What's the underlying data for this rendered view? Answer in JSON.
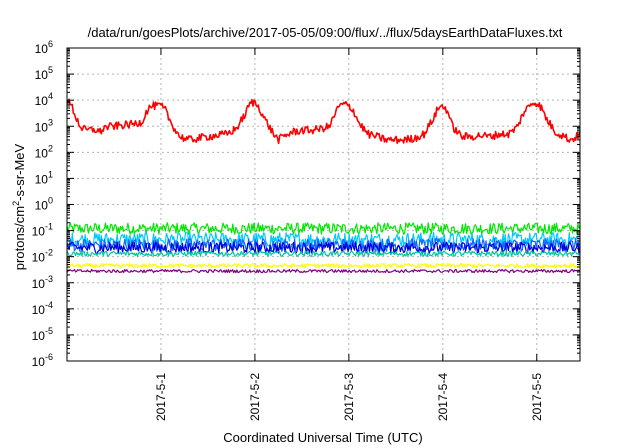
{
  "chart_data": {
    "type": "line",
    "title": "/data/run/goesPlots/archive/2017-05-05/09:00/flux/../flux/5daysEarthDataFluxes.txt",
    "xlabel": "Coordinated Universal Time (UTC)",
    "ylabel_base": "protons/cm",
    "ylabel_sup": "2",
    "ylabel_rest": "-s-sr-MeV",
    "yscale": "log",
    "ylim_exp": [
      -6,
      6
    ],
    "xlim": [
      0,
      5.46
    ],
    "x_units": "days from 2017-04-30 00:00 UTC",
    "grid": true,
    "y_ticks": [
      {
        "base": "10",
        "exp": "-6"
      },
      {
        "base": "10",
        "exp": "-5"
      },
      {
        "base": "10",
        "exp": "-4"
      },
      {
        "base": "10",
        "exp": "-3"
      },
      {
        "base": "10",
        "exp": "-2"
      },
      {
        "base": "10",
        "exp": "-1"
      },
      {
        "base": "10",
        "exp": "0"
      },
      {
        "base": "10",
        "exp": "1"
      },
      {
        "base": "10",
        "exp": "2"
      },
      {
        "base": "10",
        "exp": "3"
      },
      {
        "base": "10",
        "exp": "4"
      },
      {
        "base": "10",
        "exp": "5"
      },
      {
        "base": "10",
        "exp": "6"
      }
    ],
    "x_ticks": [
      {
        "x": 1,
        "label": "2017-5-1"
      },
      {
        "x": 2,
        "label": "2017-5-2"
      },
      {
        "x": 3,
        "label": "2017-5-3"
      },
      {
        "x": 4,
        "label": "2017-5-4"
      },
      {
        "x": 5,
        "label": "2017-5-5"
      }
    ],
    "series": [
      {
        "color": "#ff0000",
        "noise": 0.15,
        "points": [
          [
            0.0,
            10000
          ],
          [
            0.05,
            6000
          ],
          [
            0.1,
            2000
          ],
          [
            0.15,
            900
          ],
          [
            0.2,
            700
          ],
          [
            0.3,
            750
          ],
          [
            0.35,
            600
          ],
          [
            0.4,
            900
          ],
          [
            0.5,
            1000
          ],
          [
            0.6,
            1100
          ],
          [
            0.7,
            1200
          ],
          [
            0.75,
            1300
          ],
          [
            0.8,
            1500
          ],
          [
            0.85,
            4000
          ],
          [
            0.9,
            6000
          ],
          [
            1.0,
            6000
          ],
          [
            1.05,
            4000
          ],
          [
            1.1,
            1500
          ],
          [
            1.2,
            400
          ],
          [
            1.3,
            300
          ],
          [
            1.4,
            350
          ],
          [
            1.5,
            400
          ],
          [
            1.6,
            450
          ],
          [
            1.7,
            500
          ],
          [
            1.8,
            800
          ],
          [
            1.9,
            3000
          ],
          [
            1.95,
            8000
          ],
          [
            2.0,
            8000
          ],
          [
            2.05,
            5000
          ],
          [
            2.1,
            2000
          ],
          [
            2.2,
            500
          ],
          [
            2.25,
            300
          ],
          [
            2.3,
            400
          ],
          [
            2.4,
            600
          ],
          [
            2.5,
            700
          ],
          [
            2.6,
            700
          ],
          [
            2.7,
            800
          ],
          [
            2.8,
            1000
          ],
          [
            2.85,
            3000
          ],
          [
            2.9,
            6000
          ],
          [
            2.95,
            7000
          ],
          [
            3.0,
            6000
          ],
          [
            3.05,
            4000
          ],
          [
            3.1,
            1500
          ],
          [
            3.2,
            500
          ],
          [
            3.3,
            400
          ],
          [
            3.4,
            300
          ],
          [
            3.5,
            300
          ],
          [
            3.6,
            300
          ],
          [
            3.7,
            350
          ],
          [
            3.8,
            500
          ],
          [
            3.9,
            2000
          ],
          [
            3.95,
            5000
          ],
          [
            4.0,
            6000
          ],
          [
            4.05,
            4000
          ],
          [
            4.1,
            1000
          ],
          [
            4.2,
            400
          ],
          [
            4.3,
            400
          ],
          [
            4.4,
            450
          ],
          [
            4.5,
            400
          ],
          [
            4.6,
            500
          ],
          [
            4.7,
            500
          ],
          [
            4.8,
            1000
          ],
          [
            4.85,
            3000
          ],
          [
            4.95,
            8000
          ],
          [
            5.0,
            8000
          ],
          [
            5.05,
            5000
          ],
          [
            5.1,
            2000
          ],
          [
            5.2,
            600
          ],
          [
            5.3,
            400
          ],
          [
            5.35,
            300
          ],
          [
            5.4,
            350
          ],
          [
            5.46,
            500
          ]
        ]
      },
      {
        "color": "#00e600",
        "center": 0.12,
        "noise": 0.22
      },
      {
        "color": "#00c8ff",
        "center": 0.045,
        "noise": 0.28
      },
      {
        "color": "#1464ff",
        "center": 0.028,
        "noise": 0.25
      },
      {
        "color": "#0000dd",
        "center": 0.022,
        "noise": 0.22
      },
      {
        "color": "#00c8a0",
        "center": 0.013,
        "noise": 0.1
      },
      {
        "color": "#ffff00",
        "center": 0.0045,
        "noise": 0.08
      },
      {
        "color": "#800080",
        "center": 0.0028,
        "noise": 0.06
      }
    ]
  }
}
